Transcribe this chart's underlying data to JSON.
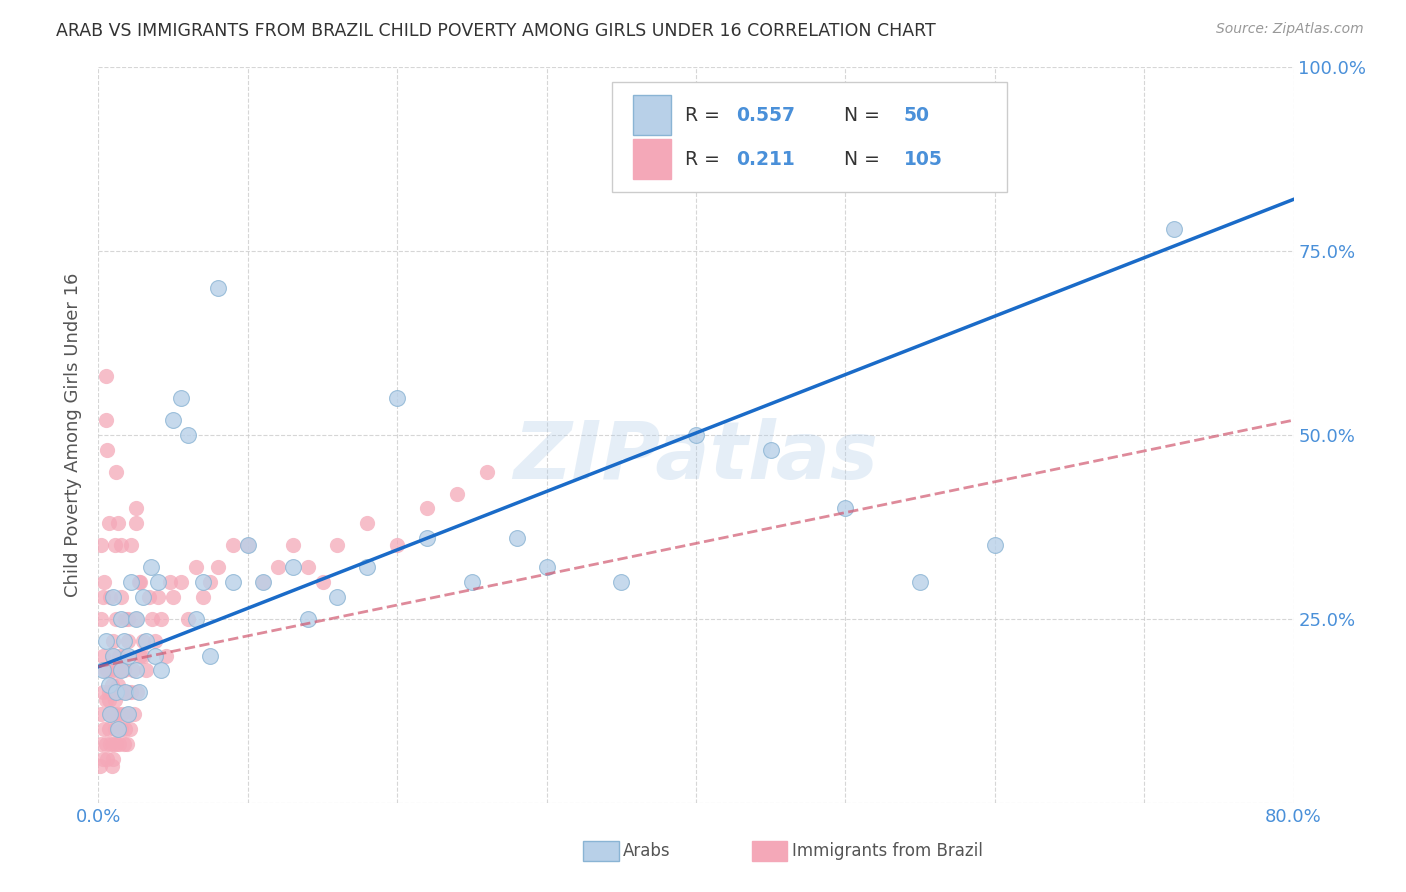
{
  "title": "ARAB VS IMMIGRANTS FROM BRAZIL CHILD POVERTY AMONG GIRLS UNDER 16 CORRELATION CHART",
  "source": "Source: ZipAtlas.com",
  "ylabel": "Child Poverty Among Girls Under 16",
  "watermark": "ZIPatlas",
  "xlim": [
    0,
    0.8
  ],
  "ylim": [
    0,
    1.0
  ],
  "xticks": [
    0.0,
    0.1,
    0.2,
    0.3,
    0.4,
    0.5,
    0.6,
    0.7,
    0.8
  ],
  "xticklabels": [
    "0.0%",
    "",
    "",
    "",
    "",
    "",
    "",
    "",
    "80.0%"
  ],
  "ytick_positions": [
    0.0,
    0.25,
    0.5,
    0.75,
    1.0
  ],
  "yticklabels": [
    "",
    "25.0%",
    "50.0%",
    "75.0%",
    "100.0%"
  ],
  "arab_color": "#b8d0e8",
  "arab_line_color": "#1a6bc8",
  "brazil_color": "#f4a8b8",
  "brazil_line_color": "#d05870",
  "arab_line_x0": 0.0,
  "arab_line_y0": 0.185,
  "arab_line_x1": 0.8,
  "arab_line_y1": 0.82,
  "brazil_line_x0": 0.0,
  "brazil_line_y0": 0.185,
  "brazil_line_x1": 0.8,
  "brazil_line_y1": 0.52,
  "arab_scatter_x": [
    0.003,
    0.005,
    0.007,
    0.008,
    0.01,
    0.01,
    0.012,
    0.013,
    0.015,
    0.015,
    0.017,
    0.018,
    0.02,
    0.02,
    0.022,
    0.025,
    0.025,
    0.027,
    0.03,
    0.032,
    0.035,
    0.038,
    0.04,
    0.042,
    0.05,
    0.055,
    0.06,
    0.065,
    0.07,
    0.075,
    0.08,
    0.09,
    0.1,
    0.11,
    0.13,
    0.14,
    0.16,
    0.18,
    0.2,
    0.22,
    0.25,
    0.28,
    0.3,
    0.35,
    0.4,
    0.45,
    0.5,
    0.55,
    0.6,
    0.72
  ],
  "arab_scatter_y": [
    0.18,
    0.22,
    0.16,
    0.12,
    0.2,
    0.28,
    0.15,
    0.1,
    0.25,
    0.18,
    0.22,
    0.15,
    0.2,
    0.12,
    0.3,
    0.18,
    0.25,
    0.15,
    0.28,
    0.22,
    0.32,
    0.2,
    0.3,
    0.18,
    0.52,
    0.55,
    0.5,
    0.25,
    0.3,
    0.2,
    0.7,
    0.3,
    0.35,
    0.3,
    0.32,
    0.25,
    0.28,
    0.32,
    0.55,
    0.36,
    0.3,
    0.36,
    0.32,
    0.3,
    0.5,
    0.48,
    0.4,
    0.3,
    0.35,
    0.78
  ],
  "brazil_scatter_x": [
    0.001,
    0.002,
    0.002,
    0.003,
    0.003,
    0.004,
    0.004,
    0.005,
    0.005,
    0.006,
    0.006,
    0.007,
    0.007,
    0.008,
    0.008,
    0.009,
    0.009,
    0.01,
    0.01,
    0.01,
    0.011,
    0.011,
    0.012,
    0.012,
    0.013,
    0.013,
    0.014,
    0.014,
    0.015,
    0.015,
    0.016,
    0.016,
    0.017,
    0.017,
    0.018,
    0.018,
    0.019,
    0.02,
    0.02,
    0.021,
    0.022,
    0.023,
    0.024,
    0.025,
    0.026,
    0.027,
    0.028,
    0.03,
    0.032,
    0.034,
    0.036,
    0.038,
    0.04,
    0.042,
    0.045,
    0.048,
    0.05,
    0.055,
    0.06,
    0.065,
    0.07,
    0.075,
    0.08,
    0.09,
    0.1,
    0.11,
    0.12,
    0.13,
    0.14,
    0.15,
    0.16,
    0.18,
    0.2,
    0.22,
    0.24,
    0.26,
    0.002,
    0.003,
    0.004,
    0.005,
    0.006,
    0.007,
    0.008,
    0.009,
    0.01,
    0.011,
    0.012,
    0.013,
    0.015,
    0.017,
    0.02,
    0.022,
    0.025,
    0.028,
    0.002,
    0.003,
    0.005,
    0.007,
    0.009,
    0.012,
    0.015,
    0.018,
    0.02,
    0.025,
    0.03
  ],
  "brazil_scatter_y": [
    0.05,
    0.08,
    0.12,
    0.06,
    0.15,
    0.1,
    0.18,
    0.08,
    0.14,
    0.06,
    0.18,
    0.1,
    0.14,
    0.08,
    0.12,
    0.16,
    0.2,
    0.06,
    0.12,
    0.22,
    0.1,
    0.14,
    0.08,
    0.18,
    0.12,
    0.16,
    0.08,
    0.2,
    0.1,
    0.15,
    0.12,
    0.18,
    0.08,
    0.15,
    0.1,
    0.2,
    0.08,
    0.12,
    0.22,
    0.1,
    0.15,
    0.18,
    0.12,
    0.25,
    0.15,
    0.3,
    0.2,
    0.22,
    0.18,
    0.28,
    0.25,
    0.22,
    0.28,
    0.25,
    0.2,
    0.3,
    0.28,
    0.3,
    0.25,
    0.32,
    0.28,
    0.3,
    0.32,
    0.35,
    0.35,
    0.3,
    0.32,
    0.35,
    0.32,
    0.3,
    0.35,
    0.38,
    0.35,
    0.4,
    0.42,
    0.45,
    0.25,
    0.2,
    0.3,
    0.58,
    0.48,
    0.38,
    0.28,
    0.18,
    0.08,
    0.35,
    0.25,
    0.38,
    0.28,
    0.18,
    0.25,
    0.35,
    0.38,
    0.3,
    0.35,
    0.28,
    0.52,
    0.15,
    0.05,
    0.45,
    0.35,
    0.25,
    0.15,
    0.4,
    0.2
  ],
  "background_color": "#ffffff",
  "grid_color": "#cccccc",
  "title_color": "#333333",
  "axis_label_color": "#555555",
  "tick_label_color": "#4a90d9"
}
